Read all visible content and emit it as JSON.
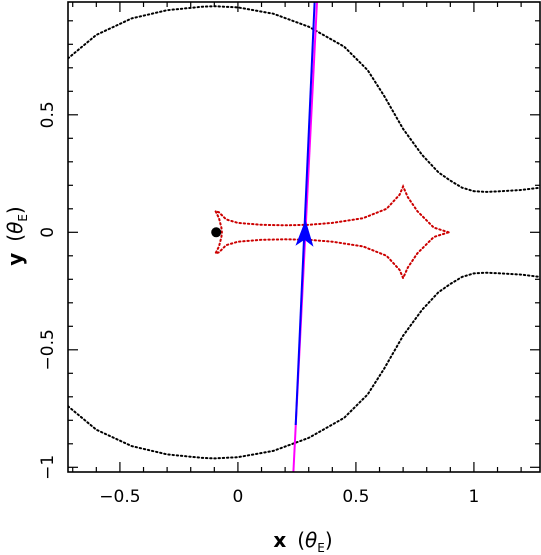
{
  "chart_data": {
    "type": "line",
    "xlabel_main": "x",
    "ylabel_main": "y",
    "axis_unit_symbol": "θ",
    "axis_unit_sub": "E",
    "xlim": [
      -0.72,
      1.28
    ],
    "ylim": [
      -1.02,
      0.98
    ],
    "x_ticks": [
      {
        "value": -0.5,
        "label": "−0.5"
      },
      {
        "value": 0,
        "label": "0"
      },
      {
        "value": 0.5,
        "label": "0.5"
      },
      {
        "value": 1,
        "label": "1"
      }
    ],
    "y_ticks": [
      {
        "value": -1,
        "label": "−1"
      },
      {
        "value": -0.5,
        "label": "−0.5"
      },
      {
        "value": 0,
        "label": "0"
      },
      {
        "value": 0.5,
        "label": "0.5"
      }
    ],
    "series": [
      {
        "kind": "critical-curve",
        "style": "dotted",
        "color": "#000000",
        "points": [
          [
            -0.72,
            0.74
          ],
          [
            -0.6,
            0.84
          ],
          [
            -0.45,
            0.91
          ],
          [
            -0.3,
            0.945
          ],
          [
            -0.15,
            0.96
          ],
          [
            -0.1,
            0.962
          ],
          [
            0.0,
            0.957
          ],
          [
            0.15,
            0.93
          ],
          [
            0.3,
            0.875
          ],
          [
            0.45,
            0.79
          ],
          [
            0.55,
            0.69
          ],
          [
            0.62,
            0.58
          ],
          [
            0.7,
            0.44
          ],
          [
            0.78,
            0.33
          ],
          [
            0.85,
            0.255
          ],
          [
            0.9,
            0.22
          ],
          [
            0.95,
            0.19
          ],
          [
            1.0,
            0.175
          ],
          [
            1.05,
            0.172
          ],
          [
            1.1,
            0.174
          ],
          [
            1.2,
            0.18
          ],
          [
            1.28,
            0.19
          ]
        ]
      },
      {
        "kind": "critical-curve",
        "style": "dotted",
        "color": "#000000",
        "points": [
          [
            -0.72,
            -0.74
          ],
          [
            -0.6,
            -0.84
          ],
          [
            -0.45,
            -0.91
          ],
          [
            -0.3,
            -0.945
          ],
          [
            -0.15,
            -0.96
          ],
          [
            -0.1,
            -0.962
          ],
          [
            0.0,
            -0.957
          ],
          [
            0.15,
            -0.93
          ],
          [
            0.3,
            -0.875
          ],
          [
            0.45,
            -0.79
          ],
          [
            0.55,
            -0.69
          ],
          [
            0.62,
            -0.58
          ],
          [
            0.7,
            -0.44
          ],
          [
            0.78,
            -0.33
          ],
          [
            0.85,
            -0.255
          ],
          [
            0.9,
            -0.22
          ],
          [
            0.95,
            -0.19
          ],
          [
            1.0,
            -0.175
          ],
          [
            1.05,
            -0.172
          ],
          [
            1.1,
            -0.174
          ],
          [
            1.2,
            -0.18
          ],
          [
            1.28,
            -0.19
          ]
        ]
      },
      {
        "kind": "caustic",
        "style": "dotted",
        "color": "#cc0000",
        "points": [
          [
            0.893,
            0.0
          ],
          [
            0.83,
            0.02
          ],
          [
            0.76,
            0.09
          ],
          [
            0.72,
            0.15
          ],
          [
            0.7,
            0.195
          ],
          [
            0.685,
            0.16
          ],
          [
            0.63,
            0.1
          ],
          [
            0.53,
            0.06
          ],
          [
            0.4,
            0.04
          ],
          [
            0.3,
            0.032
          ],
          [
            0.2,
            0.03
          ],
          [
            0.1,
            0.032
          ],
          [
            0.0,
            0.04
          ],
          [
            -0.05,
            0.055
          ],
          [
            -0.08,
            0.085
          ],
          [
            -0.095,
            0.09
          ],
          [
            -0.08,
            0.06
          ],
          [
            -0.07,
            0.02
          ],
          [
            -0.068,
            0.0
          ],
          [
            -0.07,
            -0.02
          ],
          [
            -0.08,
            -0.06
          ],
          [
            -0.095,
            -0.09
          ],
          [
            -0.08,
            -0.085
          ],
          [
            -0.05,
            -0.055
          ],
          [
            0.0,
            -0.04
          ],
          [
            0.1,
            -0.032
          ],
          [
            0.2,
            -0.03
          ],
          [
            0.3,
            -0.032
          ],
          [
            0.4,
            -0.04
          ],
          [
            0.53,
            -0.06
          ],
          [
            0.63,
            -0.1
          ],
          [
            0.685,
            -0.16
          ],
          [
            0.7,
            -0.195
          ],
          [
            0.72,
            -0.15
          ],
          [
            0.76,
            -0.09
          ],
          [
            0.83,
            -0.02
          ],
          [
            0.893,
            0.0
          ]
        ]
      },
      {
        "kind": "source-trajectory",
        "style": "solid",
        "color": "#ff00ff",
        "points": [
          [
            0.235,
            -1.02
          ],
          [
            0.335,
            0.98
          ]
        ]
      },
      {
        "kind": "source-trajectory-highlight",
        "style": "solid",
        "color": "#0000ff",
        "points": [
          [
            0.245,
            -0.82
          ],
          [
            0.325,
            0.98
          ]
        ]
      }
    ],
    "markers": [
      {
        "kind": "lens-point",
        "x": -0.092,
        "y": 0.0,
        "color": "#000000"
      }
    ],
    "arrow": {
      "x": 0.282,
      "y": -0.04,
      "direction": "up",
      "color": "#0000ff"
    }
  }
}
